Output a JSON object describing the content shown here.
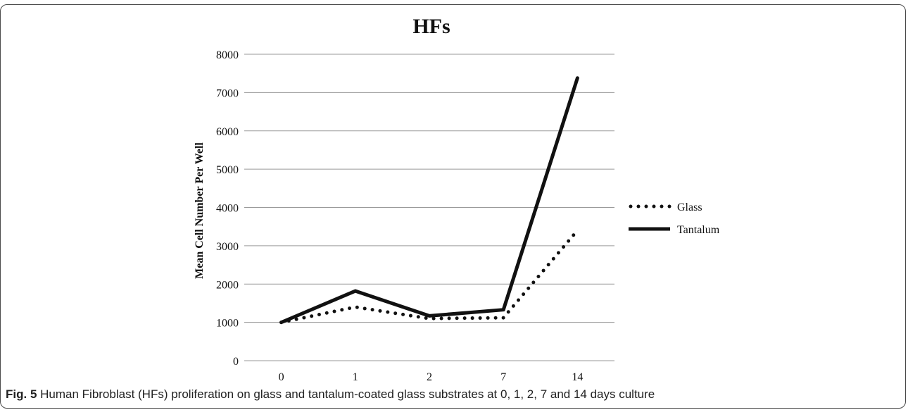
{
  "chart_data": {
    "type": "line",
    "title": "HFs",
    "xlabel": "",
    "ylabel": "Mean Cell Number Per Well",
    "categories": [
      "0",
      "1",
      "2",
      "7",
      "14"
    ],
    "ylim": [
      0,
      8000
    ],
    "yticks": [
      "0",
      "1000",
      "2000",
      "3000",
      "4000",
      "5000",
      "6000",
      "7000",
      "8000"
    ],
    "grid": true,
    "legend_position": "right",
    "series": [
      {
        "name": "Glass",
        "style": "dotted",
        "color": "#111111",
        "values": [
          1000,
          1400,
          1100,
          1120,
          3400
        ]
      },
      {
        "name": "Tantalum",
        "style": "solid",
        "color": "#111111",
        "values": [
          1000,
          1820,
          1170,
          1330,
          7380
        ]
      }
    ]
  },
  "caption": {
    "fig_label": "Fig. 5",
    "text": " Human Fibroblast (HFs) proliferation on glass and tantalum-coated glass substrates at 0, 1, 2, 7 and 14 days culture"
  }
}
